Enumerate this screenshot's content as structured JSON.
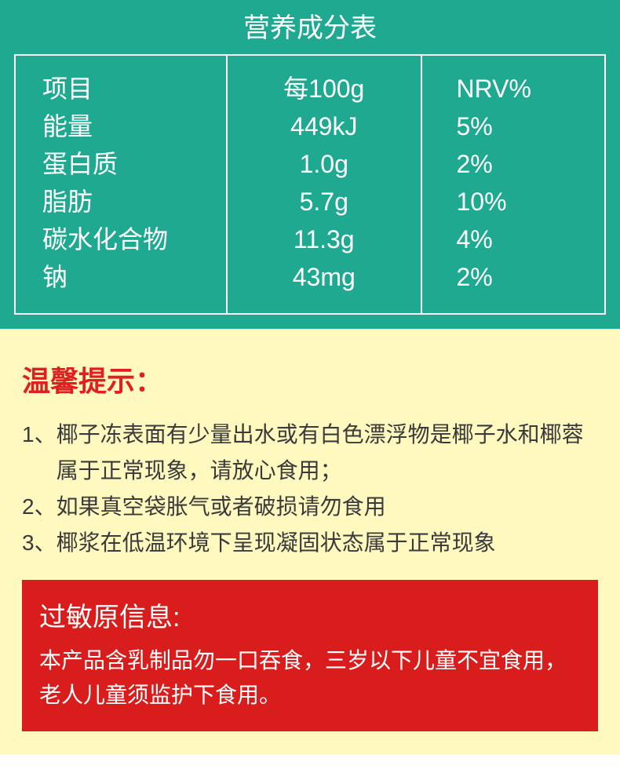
{
  "colors": {
    "nutrition_bg": "#1ea990",
    "nutrition_border": "#ffffff",
    "nutrition_text": "#ffffff",
    "tips_bg": "#fff9c0",
    "tips_title_color": "#e02020",
    "tips_text_color": "#3a3a3a",
    "allergen_bg": "#d91c1c",
    "allergen_text": "#ffffff"
  },
  "nutrition": {
    "title": "营养成分表",
    "columns": [
      "项目",
      "每100g",
      "NRV%"
    ],
    "rows": [
      {
        "name": "能量",
        "per100g": "449kJ",
        "nrv": "5%"
      },
      {
        "name": "蛋白质",
        "per100g": "1.0g",
        "nrv": "2%"
      },
      {
        "name": "脂肪",
        "per100g": "5.7g",
        "nrv": "10%"
      },
      {
        "name": "碳水化合物",
        "per100g": "11.3g",
        "nrv": "4%"
      },
      {
        "name": "钠",
        "per100g": "43mg",
        "nrv": "2%"
      }
    ],
    "title_fontsize": 34,
    "cell_fontsize": 32
  },
  "tips": {
    "title": "温馨提示：",
    "items": [
      {
        "num": "1、",
        "text": "椰子冻表面有少量出水或有白色漂浮物是椰子水和椰蓉属于正常现象，请放心食用；"
      },
      {
        "num": "2、",
        "text": "如果真空袋胀气或者破损请勿食用"
      },
      {
        "num": "3、",
        "text": "椰浆在低温环境下呈现凝固状态属于正常现象"
      }
    ],
    "title_fontsize": 36,
    "text_fontsize": 28
  },
  "allergen": {
    "title": "过敏原信息:",
    "text": "本产品含乳制品勿一口吞食，三岁以下儿童不宜食用，老人儿童须监护下食用。",
    "title_fontsize": 34,
    "text_fontsize": 28
  }
}
